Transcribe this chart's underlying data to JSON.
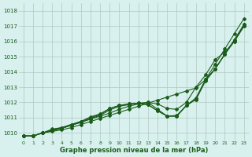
{
  "x": [
    0,
    1,
    2,
    3,
    4,
    5,
    6,
    7,
    8,
    9,
    10,
    11,
    12,
    13,
    14,
    15,
    16,
    17,
    18,
    19,
    20,
    21,
    22,
    23
  ],
  "line1": [
    1009.8,
    1009.8,
    1010.0,
    1010.1,
    1010.2,
    1010.35,
    1010.55,
    1010.75,
    1010.95,
    1011.15,
    1011.35,
    1011.55,
    1011.75,
    1011.95,
    1012.15,
    1012.35,
    1012.55,
    1012.75,
    1012.95,
    1013.5,
    1014.5,
    1015.5,
    1016.5,
    1017.5
  ],
  "line2": [
    1009.8,
    1009.8,
    1010.0,
    1010.15,
    1010.3,
    1010.5,
    1010.7,
    1010.9,
    1011.1,
    1011.3,
    1011.55,
    1011.75,
    1011.9,
    1012.0,
    1011.9,
    1011.6,
    1011.55,
    1012.0,
    1013.0,
    1013.8,
    1014.8,
    1015.3,
    1016.0,
    1017.0
  ],
  "line3": [
    1009.8,
    1009.8,
    1010.0,
    1010.15,
    1010.3,
    1010.5,
    1010.7,
    1010.95,
    1011.15,
    1011.5,
    1011.75,
    1011.85,
    1011.95,
    1012.0,
    1011.55,
    1011.1,
    1011.1,
    1011.8,
    1012.3,
    1013.5,
    1014.2,
    1015.15,
    1016.1,
    1017.1
  ],
  "line4": [
    1009.8,
    1009.8,
    1010.0,
    1010.2,
    1010.35,
    1010.55,
    1010.75,
    1011.05,
    1011.25,
    1011.6,
    1011.8,
    1011.9,
    1011.95,
    1011.85,
    1011.45,
    1011.1,
    1011.15,
    1011.8,
    1012.2,
    1013.5,
    1014.2,
    1015.15,
    1016.1,
    1017.1
  ],
  "line5": [
    1009.8,
    1009.8,
    1010.0,
    1010.25,
    1010.35,
    1010.55,
    1010.75,
    1011.0,
    1011.2,
    1011.6,
    1011.8,
    1011.9,
    1011.95,
    1011.85,
    1011.45,
    1011.1,
    1011.1,
    1011.8,
    1012.2,
    1013.4,
    1014.2,
    1015.15,
    1016.0,
    1017.0
  ],
  "ylim": [
    1009.5,
    1018.5
  ],
  "xlim": [
    -0.5,
    23.5
  ],
  "yticks": [
    1010,
    1011,
    1012,
    1013,
    1014,
    1015,
    1016,
    1017,
    1018
  ],
  "xticks": [
    0,
    1,
    2,
    3,
    4,
    5,
    6,
    7,
    8,
    9,
    10,
    11,
    12,
    13,
    14,
    15,
    16,
    17,
    18,
    19,
    20,
    21,
    22,
    23
  ],
  "xlabel": "Graphe pression niveau de la mer (hPa)",
  "line_color": "#1a5c1a",
  "bg_color": "#d8f0ee",
  "grid_color": "#b0c8c0",
  "marker": "D",
  "marker_size": 2.0,
  "linewidth": 0.8
}
